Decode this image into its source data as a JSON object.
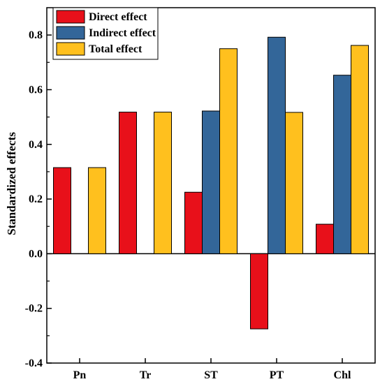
{
  "chart_data": {
    "type": "bar",
    "ylabel": "Standardized effects",
    "ylim": [
      -0.4,
      0.9
    ],
    "yticks": [
      "-0.4",
      "-0.2",
      "0.0",
      "0.2",
      "0.4",
      "0.6",
      "0.8"
    ],
    "categories": [
      "Pn",
      "Tr",
      "ST",
      "PT",
      "Chl"
    ],
    "series": [
      {
        "name": "Direct effect",
        "color": "#e8101a",
        "values": [
          0.315,
          0.518,
          0.225,
          -0.275,
          0.108
        ]
      },
      {
        "name": "Indirect effect",
        "color": "#336699",
        "values": [
          null,
          null,
          0.522,
          0.792,
          0.653
        ]
      },
      {
        "name": "Total effect",
        "color": "#ffc01e",
        "values": [
          0.315,
          0.518,
          0.75,
          0.517,
          0.762
        ]
      }
    ],
    "legend": "top-left",
    "grid": false
  }
}
